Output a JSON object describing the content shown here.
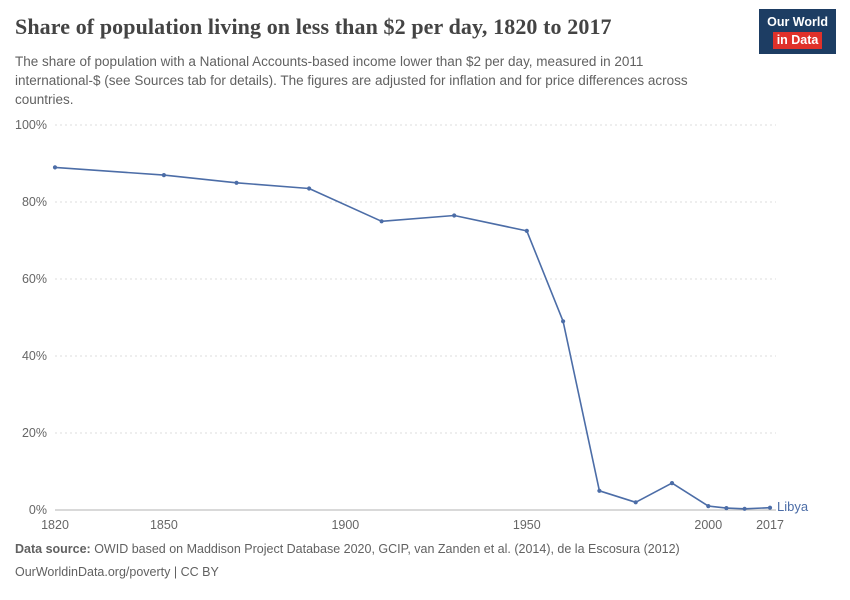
{
  "header": {
    "title": "Share of population living on less than $2 per day, 1820 to 2017",
    "subtitle": "The share of population with a National Accounts-based income lower than $2 per day, measured in 2011 international-$ (see Sources tab for details). The figures are adjusted for inflation and for price differences across countries.",
    "logo": {
      "line1": "Our World",
      "line2": "in Data"
    }
  },
  "theme": {
    "logo_bg": "#1d3d63",
    "logo_accent": "#e0312a",
    "series_blue": "#4c6da7"
  },
  "chart_data": {
    "type": "line",
    "title": "Share of population living on less than $2 per day, 1820 to 2017",
    "xlabel": "",
    "ylabel": "",
    "xlim": [
      1820,
      2017
    ],
    "ylim": [
      0,
      100
    ],
    "x_ticks": [
      "1820",
      "1850",
      "1900",
      "1950",
      "2000",
      "2017"
    ],
    "y_ticks": [
      "0%",
      "20%",
      "40%",
      "60%",
      "80%",
      "100%"
    ],
    "grid": "horizontal-dashed",
    "legend": "end-of-line-label",
    "series": [
      {
        "name": "Libya",
        "color": "#4c6da7",
        "points": [
          {
            "year": 1820,
            "value": 89
          },
          {
            "year": 1850,
            "value": 87
          },
          {
            "year": 1870,
            "value": 85
          },
          {
            "year": 1890,
            "value": 83.5
          },
          {
            "year": 1910,
            "value": 75
          },
          {
            "year": 1930,
            "value": 76.5
          },
          {
            "year": 1950,
            "value": 72.5
          },
          {
            "year": 1960,
            "value": 49
          },
          {
            "year": 1970,
            "value": 5
          },
          {
            "year": 1980,
            "value": 2
          },
          {
            "year": 1990,
            "value": 7
          },
          {
            "year": 2000,
            "value": 1
          },
          {
            "year": 2005,
            "value": 0.5
          },
          {
            "year": 2010,
            "value": 0.3
          },
          {
            "year": 2017,
            "value": 0.6
          }
        ]
      }
    ]
  },
  "footer": {
    "datasource_label": "Data source:",
    "datasource_text": " OWID based on Maddison Project Database 2020, GCIP, van Zanden et al. (2014), de la Escosura (2012)",
    "link_text": "OurWorldinData.org/poverty | CC BY"
  }
}
